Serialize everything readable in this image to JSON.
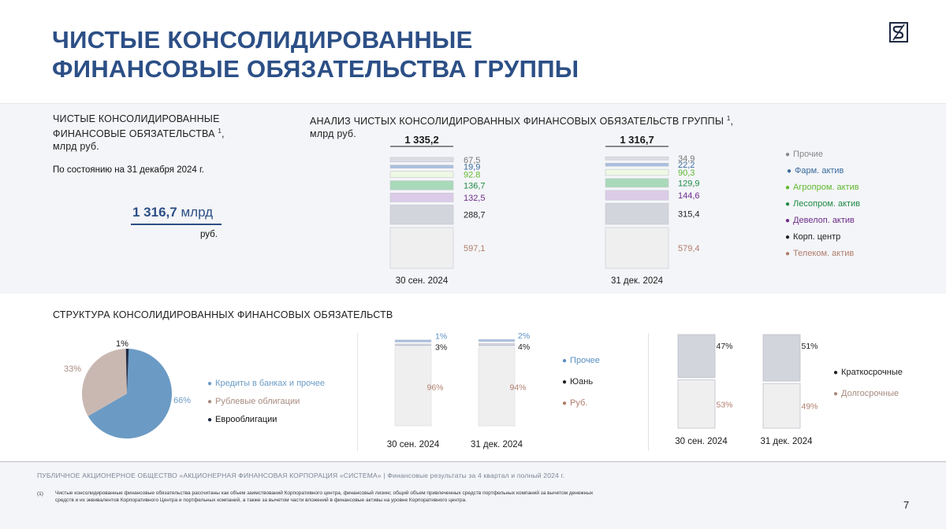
{
  "header": {
    "title_line1": "ЧИСТЫЕ КОНСОЛИДИРОВАННЫЕ",
    "title_line2": "ФИНАНСОВЫЕ ОБЯЗАТЕЛЬСТВА ГРУППЫ"
  },
  "summary": {
    "title_line1": "ЧИСТЫЕ КОНСОЛИДИРОВАННЫЕ",
    "title_line2": "ФИНАНСОВЫЕ ОБЯЗАТЕЛЬСТВА ",
    "title_sup": "1",
    "title_line2_end": ",",
    "title_line3": "млрд руб.",
    "as_of": "По состоянию на 31 декабря 2024 г.",
    "value": "1 316,7",
    "value_unit": "млрд",
    "value_unit2": "руб."
  },
  "analysis": {
    "title_line1": "АНАЛИЗ ЧИСТЫХ КОНСОЛИДИРОВАННЫХ ФИНАНСОВЫХ ОБЯЗАТЕЛЬСТВ ГРУППЫ ",
    "title_sup": "1",
    "title_line1_end": ",",
    "title_line2": "млрд руб."
  },
  "structure": {
    "title": "СТРУКТУРА КОНСОЛИДИРОВАННЫХ ФИНАНСОВЫХ ОБЯЗАТЕЛЬСТВ"
  },
  "colors": {
    "title_blue": "#2c4f86",
    "telecom": "#f0eff0",
    "corp_center": "#d3d5dd",
    "development": "#dccbe8",
    "timber": "#a8d9b9",
    "agro": "#eef8e4",
    "pharma": "#a8bedf",
    "other": "#dcdde3",
    "credits": "#6b9bc5",
    "ruble_bonds": "#c9b8b2",
    "eurobonds": "#1f2a44"
  },
  "chart_data": [
    {
      "type": "bar",
      "stacked": true,
      "categories": [
        "30 сен. 2024",
        "31 дек. 2024"
      ],
      "totals": [
        "1 335,2",
        "1 316,7"
      ],
      "series": [
        {
          "name": "Телеком. актив",
          "values": [
            597.1,
            579.4
          ],
          "labels": [
            "597,1",
            "579,4"
          ],
          "color": "#f0eff0",
          "label_color": "#b07d6c"
        },
        {
          "name": "Корп. центр",
          "values": [
            288.7,
            315.4
          ],
          "labels": [
            "288,7",
            "315,4"
          ],
          "color": "#d3d5dd",
          "label_color": "#222222"
        },
        {
          "name": "Девелоп. актив",
          "values": [
            132.5,
            144.6
          ],
          "labels": [
            "132,5",
            "144,6"
          ],
          "color": "#dccbe8",
          "label_color": "#6e2d8a"
        },
        {
          "name": "Лесопром. актив",
          "values": [
            136.7,
            129.9
          ],
          "labels": [
            "136,7",
            "129,9"
          ],
          "color": "#a8d9b9",
          "label_color": "#1e8a45"
        },
        {
          "name": "Агропром. актив",
          "values": [
            92.8,
            90.3
          ],
          "labels": [
            "92.8",
            "90,3"
          ],
          "color": "#eef8e4",
          "label_color": "#5fb830"
        },
        {
          "name": "Фарм. актив",
          "values": [
            19.9,
            22.2
          ],
          "labels": [
            "19,9",
            "22,2"
          ],
          "color": "#a8bedf",
          "label_color": "#3a6c9e"
        },
        {
          "name": "Прочие",
          "values": [
            67.5,
            34.9
          ],
          "labels": [
            "67,5",
            "34,9"
          ],
          "color": "#dcdde3",
          "label_color": "#777777"
        }
      ],
      "legend": [
        {
          "label": "Прочие",
          "color": "#888888"
        },
        {
          "label": "Фарм. актив",
          "color": "#3a6c9e"
        },
        {
          "label": "Агропром. актив",
          "color": "#5fb830"
        },
        {
          "label": "Лесопром. актив",
          "color": "#1e8a45"
        },
        {
          "label": "Девелоп. актив",
          "color": "#6e2d8a"
        },
        {
          "label": "Корп. центр",
          "color": "#222222"
        },
        {
          "label": "Телеком. актив",
          "color": "#b07d6c"
        }
      ]
    },
    {
      "type": "pie",
      "categories": [
        "Кредиты в банках и прочее",
        "Рублевые облигации",
        "Еврооблигации"
      ],
      "values": [
        66,
        33,
        1
      ],
      "labels": [
        "66%",
        "33%",
        "1%"
      ],
      "colors": [
        "#6b9bc5",
        "#c9b8b2",
        "#1f2a44"
      ],
      "legend_colors": [
        "#6b9bc5",
        "#a88b80",
        "#1f2a44"
      ]
    },
    {
      "type": "bar",
      "stacked": true,
      "categories": [
        "30 сен. 2024",
        "31 дек. 2024"
      ],
      "series": [
        {
          "name": "Руб.",
          "values": [
            96,
            94
          ],
          "labels": [
            "96%",
            "94%"
          ],
          "color": "#f0eff0",
          "label_color": "#b07d6c"
        },
        {
          "name": "Юань",
          "values": [
            3,
            4
          ],
          "labels": [
            "3%",
            "4%"
          ],
          "color": "#cdd0d8",
          "label_color": "#222222"
        },
        {
          "name": "Прочее",
          "values": [
            1,
            2
          ],
          "labels": [
            "1%",
            "2%"
          ],
          "color": "#a8bedf",
          "label_color": "#5b8fc2"
        }
      ],
      "legend": [
        {
          "label": "Прочее",
          "color": "#5b8fc2"
        },
        {
          "label": "Юань",
          "color": "#222222"
        },
        {
          "label": "Руб.",
          "color": "#b07d6c"
        }
      ]
    },
    {
      "type": "bar",
      "stacked": true,
      "categories": [
        "30 сен. 2024",
        "31 дек. 2024"
      ],
      "series": [
        {
          "name": "Долгосрочные",
          "values": [
            53,
            49
          ],
          "labels": [
            "53%",
            "49%"
          ],
          "color": "#f0eff0",
          "label_color": "#b07d6c"
        },
        {
          "name": "Краткосрочные",
          "values": [
            47,
            51
          ],
          "labels": [
            "47%",
            "51%"
          ],
          "color": "#d3d5dd",
          "label_color": "#222222"
        }
      ],
      "legend": [
        {
          "label": "Краткосрочные",
          "color": "#222222"
        },
        {
          "label": "Долгосрочные",
          "color": "#a88b80"
        }
      ]
    }
  ],
  "footer": {
    "company": "ПУБЛИЧНОЕ АКЦИОНЕРНОЕ ОБЩЕСТВО «АКЦИОНЕРНАЯ ФИНАНСОВАЯ КОРПОРАЦИЯ «СИСТЕМА» | Финансовые результаты за 4 квартал и полный 2024 г.",
    "footnote_num": "(1)",
    "footnote": "Чистые консолидированные финансовые обязательства рассчитаны как объем заимствований Корпоративного центра, финансовый лизинг, общий объем привлеченных средств портфельных компаний за вычетом денежных средств и их эквивалентов Корпоративного Центра и портфельных компаний, а также за вычетом части вложений в финансовые активы на уровне Корпоративного центра.",
    "page": "7"
  }
}
